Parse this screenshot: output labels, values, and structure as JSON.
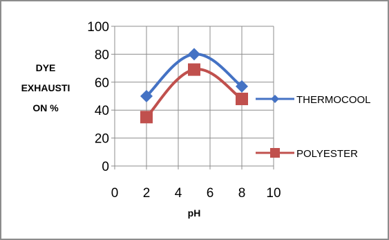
{
  "chart_data": {
    "type": "line",
    "title": "",
    "xlabel": "pH",
    "ylabel_lines": [
      "DYE",
      "EXHAUSTI",
      "ON %"
    ],
    "xlim": [
      0,
      10
    ],
    "ylim": [
      0,
      100
    ],
    "x_ticks": [
      "0",
      "2",
      "4",
      "6",
      "8",
      "10"
    ],
    "y_ticks": [
      "0",
      "20",
      "40",
      "60",
      "80",
      "100"
    ],
    "grid": true,
    "legend_position": "right",
    "series": [
      {
        "name": "THERMOCOOL",
        "color": "#4472c4",
        "marker": "diamond",
        "x": [
          2,
          5,
          8
        ],
        "y": [
          50,
          80,
          57
        ]
      },
      {
        "name": "POLYESTER",
        "color": "#c0504d",
        "marker": "square",
        "x": [
          2,
          5,
          8
        ],
        "y": [
          35,
          69,
          48
        ]
      }
    ]
  }
}
